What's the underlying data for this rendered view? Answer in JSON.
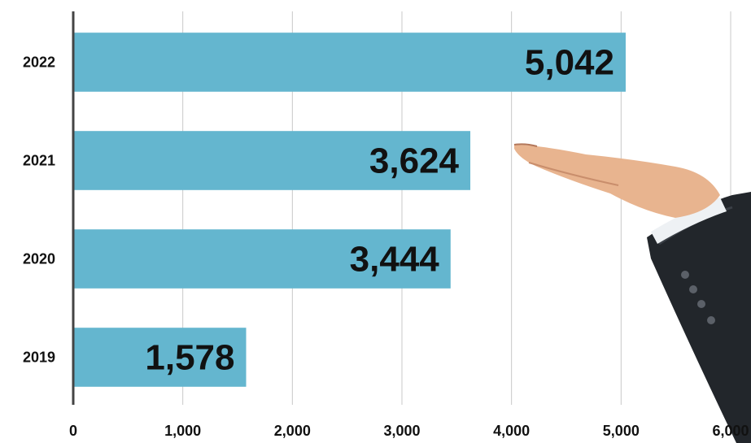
{
  "chart_data": {
    "type": "bar",
    "orientation": "horizontal",
    "categories": [
      "2022",
      "2021",
      "2020",
      "2019"
    ],
    "values": [
      5042,
      3624,
      3444,
      1578
    ],
    "data_labels": [
      "5,042",
      "3,624",
      "3,444",
      "1,578"
    ],
    "xlim": [
      0,
      6000
    ],
    "x_ticks": [
      0,
      1000,
      2000,
      3000,
      4000,
      5000,
      6000
    ],
    "x_tick_labels": [
      "0",
      "1,000",
      "2,000",
      "3,000",
      "4,000",
      "5,000",
      "6,000"
    ],
    "title": "",
    "xlabel": "",
    "ylabel": "",
    "grid": "vertical",
    "legend": "none",
    "bar_color": "#64b6cf",
    "axis_color": "#444444",
    "grid_color": "#c8c8c8",
    "decoration": "business-hand-icon"
  }
}
